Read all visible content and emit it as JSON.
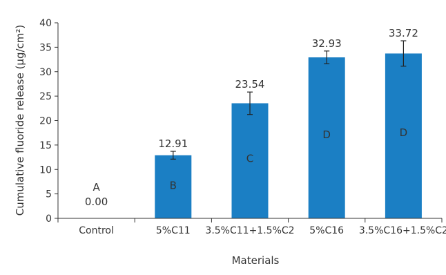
{
  "chart_data": {
    "type": "bar",
    "title": "",
    "xlabel": "Materials",
    "ylabel": "Cumulative fluoride release (µg/cm²)",
    "ylim": [
      0,
      40
    ],
    "yticks": [
      "0",
      "5",
      "10",
      "15",
      "20",
      "25",
      "30",
      "35",
      "40"
    ],
    "grid": false,
    "legend": "none",
    "bar_color": "#1b7fc4",
    "categories": [
      "Control",
      "5%C11",
      "3.5%C11+1.5%C2",
      "5%C16",
      "3.5%C16+1.5%C2"
    ],
    "values": [
      0.0,
      12.91,
      23.54,
      32.93,
      33.72
    ],
    "value_labels": [
      "0.00",
      "12.91",
      "23.54",
      "32.93",
      "33.72"
    ],
    "error_bars": [
      0,
      0.8,
      2.3,
      1.3,
      2.6
    ],
    "group_letters": [
      "A",
      "B",
      "C",
      "D",
      "D"
    ]
  }
}
